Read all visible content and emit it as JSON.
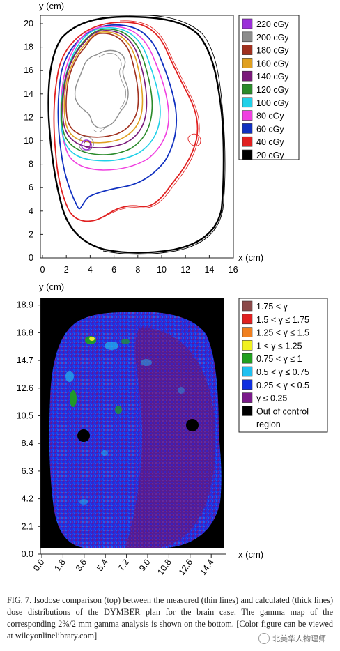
{
  "figure": {
    "top_plot": {
      "y_axis_label": "y (cm)",
      "x_axis_label": "x (cm)",
      "y_ticks": [
        "0",
        "2",
        "4",
        "6",
        "8",
        "10",
        "12",
        "14",
        "16",
        "18",
        "20"
      ],
      "x_ticks": [
        "0",
        "2",
        "4",
        "6",
        "8",
        "10",
        "12",
        "14",
        "16"
      ],
      "legend": [
        {
          "label": "220 cGy",
          "color": "#9b30d9"
        },
        {
          "label": "200 cGy",
          "color": "#8c8c8c"
        },
        {
          "label": "180 cGy",
          "color": "#a0301e"
        },
        {
          "label": "160 cGy",
          "color": "#e0a020"
        },
        {
          "label": "140 cGy",
          "color": "#7a1a7a"
        },
        {
          "label": "120 cGy",
          "color": "#2a8a2a"
        },
        {
          "label": "100 cGy",
          "color": "#20d0e8"
        },
        {
          "label": "80 cGy",
          "color": "#f040e0"
        },
        {
          "label": "60 cGy",
          "color": "#1030c0"
        },
        {
          "label": "40 cGy",
          "color": "#e02020"
        },
        {
          "label": "20 cGy",
          "color": "#000000"
        }
      ]
    },
    "bottom_plot": {
      "y_axis_label": "y (cm)",
      "x_axis_label": "x (cm)",
      "y_ticks": [
        "0.0",
        "2.1",
        "4.2",
        "6.3",
        "8.4",
        "10.5",
        "12.6",
        "14.7",
        "16.8",
        "18.9"
      ],
      "x_ticks": [
        "0.0",
        "1.8",
        "3.6",
        "5.4",
        "7.2",
        "9.0",
        "10.8",
        "12.6",
        "14.4"
      ],
      "legend": [
        {
          "label": "1.75 < γ",
          "color": "#8b4a4a"
        },
        {
          "label": "1.5 < γ ≤ 1.75",
          "color": "#e02020"
        },
        {
          "label": "1.25 < γ ≤ 1.5",
          "color": "#f08020"
        },
        {
          "label": "1 < γ ≤ 1.25",
          "color": "#f0f020"
        },
        {
          "label": "0.75 < γ ≤ 1",
          "color": "#20a020"
        },
        {
          "label": "0.5 < γ ≤ 0.75",
          "color": "#20c0f0"
        },
        {
          "label": "0.25 < γ ≤ 0.5",
          "color": "#1030e0"
        },
        {
          "label": "γ ≤ 0.25",
          "color": "#7a1a8a"
        },
        {
          "label": "Out of control",
          "color": "#000000"
        },
        {
          "label": "region",
          "color": ""
        }
      ]
    }
  },
  "caption": {
    "text": "FIG. 7. Isodose comparison (top) between the measured (thin lines) and calculated (thick lines) dose distributions of the DYMBER plan for the brain case. The gamma map of the corresponding 2%/2 mm gamma analysis is shown on the bottom. [Color figure can be viewed at wileyonlinelibrary.com]"
  },
  "watermark": {
    "text": "北美华人物理师"
  }
}
